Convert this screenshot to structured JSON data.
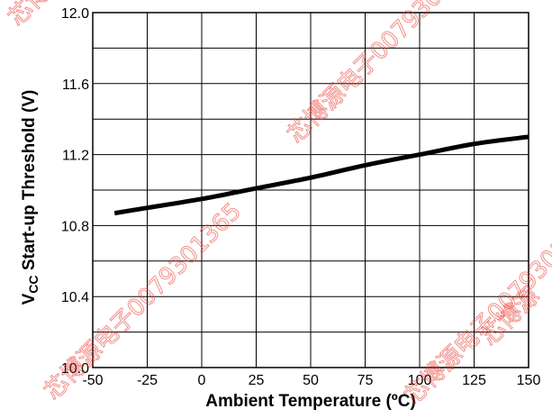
{
  "chart_data": {
    "type": "line",
    "title": "",
    "xlabel": "Ambient Temperature (ºC)",
    "ylabel_main": "V",
    "ylabel_sub": "CC",
    "ylabel_rest": " Start-up Threshold (V)",
    "xlim": [
      -50,
      150
    ],
    "ylim": [
      10.0,
      12.0
    ],
    "x_ticks": [
      -50,
      -25,
      0,
      25,
      50,
      75,
      100,
      125,
      150
    ],
    "x_tick_labels": [
      "-50",
      "-25",
      "0",
      "25",
      "50",
      "75",
      "100",
      "125",
      "150"
    ],
    "y_ticks": [
      10.0,
      10.4,
      10.8,
      11.2,
      11.6,
      12.0
    ],
    "y_tick_labels": [
      "10.0",
      "10.4",
      "10.8",
      "11.2",
      "11.6",
      "12.0"
    ],
    "x_grid": [
      -50,
      -25,
      0,
      25,
      50,
      75,
      100,
      125,
      150
    ],
    "y_grid": [
      10.0,
      10.2,
      10.4,
      10.6,
      10.8,
      11.0,
      11.2,
      11.4,
      11.6,
      11.8,
      12.0
    ],
    "grid": true,
    "line_color": "#000000",
    "series": [
      {
        "x": [
          -40,
          -25,
          0,
          25,
          50,
          75,
          100,
          125,
          150
        ],
        "y": [
          10.87,
          10.9,
          10.95,
          11.01,
          11.07,
          11.14,
          11.2,
          11.26,
          11.3
        ]
      }
    ]
  },
  "watermark": {
    "color": "#e8352b",
    "items": [
      "芯博源电子0079301365",
      "芯博源电子0079301365",
      "芯博源电子0079301365",
      "芯博源电子0079301365",
      "芯博源"
    ]
  }
}
